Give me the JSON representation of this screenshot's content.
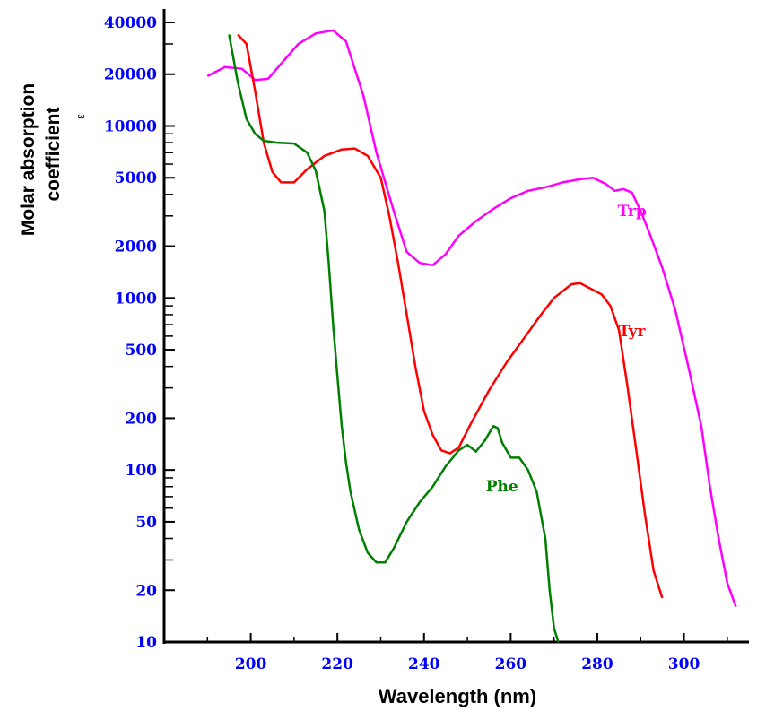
{
  "chart_data": {
    "type": "line",
    "title": "",
    "xlabel": "Wavelength (nm)",
    "ylabel": {
      "line1": "Molar absorption",
      "line2": "coefficient",
      "subscript": "ε"
    },
    "xlim": [
      180,
      315
    ],
    "ylim": [
      10,
      40000
    ],
    "yscale": "log",
    "grid": false,
    "x_ticks": [
      "200",
      "220",
      "240",
      "260",
      "280",
      "300"
    ],
    "y_ticks": [
      "40000",
      "20000",
      "10000",
      "5000",
      "2000",
      "1000",
      "500",
      "200",
      "100",
      "50",
      "20",
      "10"
    ],
    "colors": {
      "tick_labels": "#0000ff",
      "axis": "#000000"
    },
    "series": [
      {
        "name": "Trp",
        "color": "#ff00ff",
        "x": [
          190,
          194,
          198,
          201,
          204,
          207,
          211,
          215,
          219,
          222,
          226,
          229,
          233,
          236,
          239,
          242,
          245,
          248,
          252,
          256,
          260,
          264,
          268,
          272,
          276,
          279,
          282,
          284,
          286,
          288,
          290,
          292,
          295,
          298,
          301,
          304,
          306,
          308,
          310,
          312
        ],
        "y": [
          19500,
          22000,
          21500,
          18500,
          18800,
          23000,
          30000,
          34500,
          36000,
          31000,
          15000,
          7000,
          3200,
          1850,
          1600,
          1550,
          1800,
          2300,
          2800,
          3300,
          3800,
          4200,
          4400,
          4700,
          4900,
          5000,
          4600,
          4200,
          4300,
          4100,
          3200,
          2400,
          1500,
          850,
          400,
          180,
          80,
          40,
          22,
          16
        ]
      },
      {
        "name": "Tyr",
        "color": "#ff0000",
        "x": [
          197,
          199,
          201,
          203,
          205,
          207,
          210,
          213,
          217,
          221,
          224,
          227,
          230,
          232,
          234,
          236,
          238,
          240,
          242,
          244,
          246,
          248,
          251,
          255,
          259,
          263,
          267,
          270,
          274,
          276,
          278,
          281,
          283,
          285,
          287,
          289,
          291,
          293,
          295
        ],
        "y": [
          34000,
          30000,
          16000,
          8000,
          5400,
          4700,
          4700,
          5600,
          6700,
          7300,
          7400,
          6700,
          5000,
          3000,
          1600,
          800,
          400,
          220,
          160,
          130,
          125,
          135,
          190,
          290,
          420,
          580,
          800,
          1000,
          1200,
          1220,
          1150,
          1050,
          900,
          650,
          300,
          130,
          55,
          26,
          18
        ]
      },
      {
        "name": "Phe",
        "color": "#008000",
        "x": [
          195,
          197,
          199,
          201,
          203,
          206,
          210,
          213,
          215,
          217,
          218,
          219,
          220,
          221,
          222,
          223,
          225,
          227,
          229,
          231,
          233,
          236,
          239,
          242,
          245,
          248,
          250,
          252,
          254,
          256,
          257,
          258,
          260,
          262,
          264,
          266,
          268,
          269,
          270,
          271
        ],
        "y": [
          34000,
          18000,
          11000,
          9000,
          8200,
          8000,
          7900,
          7000,
          5500,
          3200,
          1600,
          700,
          350,
          180,
          110,
          75,
          45,
          33,
          29,
          29,
          35,
          50,
          65,
          80,
          105,
          130,
          140,
          128,
          148,
          180,
          175,
          145,
          118,
          118,
          100,
          75,
          40,
          20,
          12,
          10
        ]
      }
    ],
    "annotations": [
      {
        "text": "Trp",
        "x": 288,
        "y": 3000,
        "color": "#ff00ff",
        "series": 0
      },
      {
        "text": "Tyr",
        "x": 288,
        "y": 600,
        "color": "#ff0000",
        "series": 1
      },
      {
        "text": "Phe",
        "x": 258,
        "y": 75,
        "color": "#008000",
        "series": 2
      }
    ]
  }
}
